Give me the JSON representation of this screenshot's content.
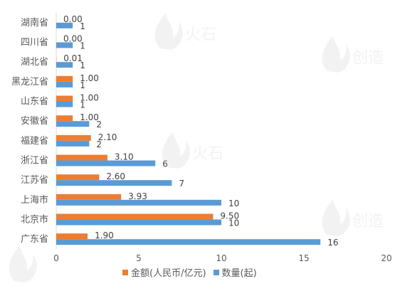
{
  "chart_data": {
    "type": "bar",
    "orientation": "horizontal",
    "categories": [
      "湖南省",
      "四川省",
      "湖北省",
      "黑龙江省",
      "山东省",
      "安徽省",
      "福建省",
      "浙江省",
      "江苏省",
      "上海市",
      "北京市",
      "广东省"
    ],
    "series": [
      {
        "name": "金额(人民币/亿元)",
        "color": "#ED7D31",
        "values": [
          0.0,
          0.0,
          0.01,
          1.0,
          1.0,
          1.0,
          2.1,
          3.1,
          2.6,
          3.93,
          9.5,
          1.9
        ],
        "labels": [
          "0.00",
          "0.00",
          "0.01",
          "1.00",
          "1.00",
          "1.00",
          "2.10",
          "3.10",
          "2.60",
          "3.93",
          "9.50",
          "1.90"
        ]
      },
      {
        "name": "数量(起)",
        "color": "#5B9BD5",
        "values": [
          1,
          1,
          1,
          1,
          1,
          2,
          2,
          6,
          7,
          10,
          10,
          16
        ],
        "labels": [
          "1",
          "1",
          "1",
          "1",
          "1",
          "2",
          "2",
          "6",
          "7",
          "10",
          "10",
          "16"
        ]
      }
    ],
    "xlim": [
      0,
      20
    ],
    "xticks": [
      "0",
      "5",
      "10",
      "15",
      "20"
    ],
    "legend_position": "bottom",
    "grid": false
  },
  "watermark": {
    "text": "火石创造"
  }
}
